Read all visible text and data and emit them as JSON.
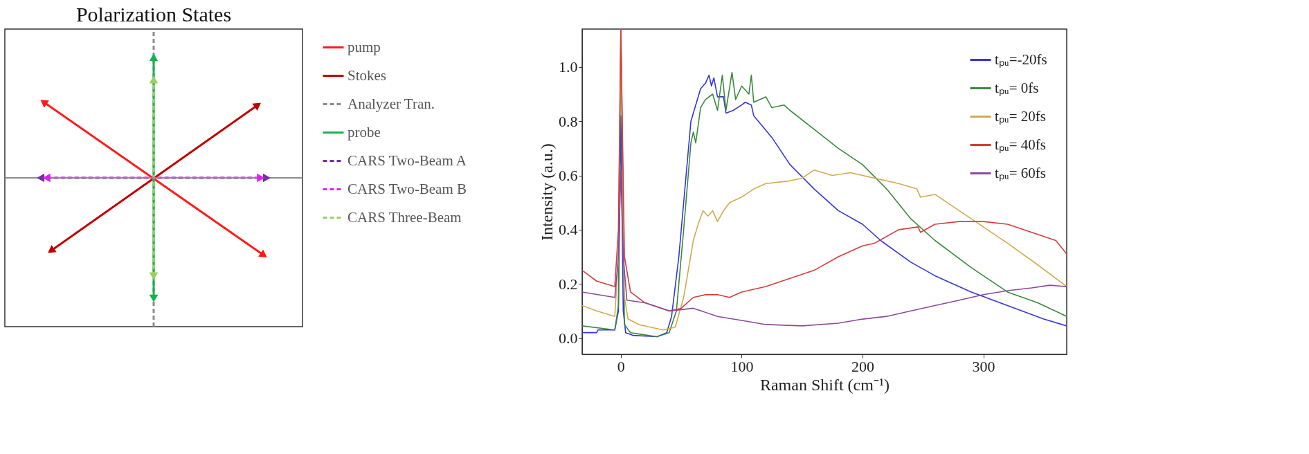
{
  "chart_data": [
    {
      "type": "other",
      "title": "Polarization States",
      "legend": "right",
      "series": [
        {
          "name": "pump",
          "color": "#ff1a1a",
          "line_style": "solid"
        },
        {
          "name": "Stokes",
          "color": "#c00000",
          "line_style": "solid"
        },
        {
          "name": "Analyzer Tran.",
          "color": "#8c8c8c",
          "line_style": "dashed"
        },
        {
          "name": "probe",
          "color": "#19b050",
          "line_style": "solid"
        },
        {
          "name": "CARS Two-Beam A",
          "color": "#7030a0",
          "line_style": "dashed"
        },
        {
          "name": "CARS Two-Beam B",
          "color": "#e020f0",
          "line_style": "dashed"
        },
        {
          "name": "CARS Three-Beam",
          "color": "#99d060",
          "line_style": "dashed"
        }
      ]
    },
    {
      "type": "line",
      "xlabel": "Raman Shift (cm⁻¹)",
      "ylabel": "Intensity (a.u.)",
      "legend": "top right",
      "grid": false,
      "line_style": "solid",
      "xlim": [
        -32,
        369
      ],
      "ylim": [
        -0.06,
        1.14
      ],
      "xticks": [
        0,
        100,
        200,
        300
      ],
      "yticks": [
        {
          "value": 0,
          "label": "0.0"
        },
        {
          "value": 0.2,
          "label": "0.2"
        },
        {
          "value": 0.4,
          "label": "0.4"
        },
        {
          "value": 0.6,
          "label": "0.6"
        },
        {
          "value": 0.8,
          "label": "0.8"
        },
        {
          "value": 1,
          "label": "1.0"
        }
      ],
      "series": [
        {
          "name": "tₚᵤ=-20fs",
          "color": "#3535d8",
          "x": [
            -32,
            -20,
            -19,
            -5,
            -2,
            0,
            2,
            4,
            10,
            30,
            38,
            42,
            48,
            54,
            58,
            62,
            66,
            70,
            73,
            75,
            77,
            80,
            85,
            87,
            93,
            100,
            103,
            108,
            110,
            125,
            140,
            160,
            180,
            200,
            215,
            240,
            260,
            290,
            320,
            350,
            369
          ],
          "values": [
            0.02,
            0.02,
            0.03,
            0.03,
            0.1,
            0.82,
            0.1,
            0.02,
            0.01,
            0.005,
            0.02,
            0.08,
            0.3,
            0.6,
            0.8,
            0.86,
            0.92,
            0.94,
            0.97,
            0.93,
            0.96,
            0.89,
            0.89,
            0.83,
            0.84,
            0.86,
            0.87,
            0.86,
            0.82,
            0.74,
            0.64,
            0.55,
            0.47,
            0.42,
            0.36,
            0.28,
            0.23,
            0.17,
            0.12,
            0.07,
            0.045
          ]
        },
        {
          "name": "tₚᵤ=  0fs",
          "color": "#3a8a3a",
          "x": [
            -32,
            -5,
            -2,
            0,
            3,
            8,
            15,
            30,
            40,
            46,
            52,
            58,
            60,
            62,
            66,
            70,
            76,
            80,
            84,
            87,
            92,
            95,
            100,
            106,
            108,
            110,
            120,
            125,
            135,
            140,
            160,
            180,
            200,
            220,
            240,
            260,
            290,
            320,
            345,
            369
          ],
          "values": [
            0.045,
            0.03,
            0.12,
            1.14,
            0.05,
            0.02,
            0.015,
            0.005,
            0.02,
            0.1,
            0.4,
            0.72,
            0.76,
            0.72,
            0.85,
            0.88,
            0.9,
            0.84,
            0.97,
            0.84,
            0.98,
            0.88,
            0.93,
            0.9,
            0.97,
            0.87,
            0.89,
            0.85,
            0.86,
            0.84,
            0.77,
            0.7,
            0.64,
            0.55,
            0.44,
            0.36,
            0.26,
            0.17,
            0.13,
            0.08
          ]
        },
        {
          "name": "tₚᵤ= 20fs",
          "color": "#d4a850",
          "x": [
            -32,
            -20,
            -5,
            -2,
            0,
            3,
            6,
            15,
            35,
            45,
            52,
            60,
            64,
            68,
            72,
            76,
            80,
            85,
            90,
            100,
            110,
            120,
            140,
            150,
            160,
            175,
            190,
            210,
            230,
            245,
            248,
            260,
            290,
            320,
            345,
            369
          ],
          "values": [
            0.12,
            0.1,
            0.08,
            0.3,
            1.14,
            0.15,
            0.07,
            0.05,
            0.03,
            0.04,
            0.15,
            0.36,
            0.42,
            0.47,
            0.45,
            0.47,
            0.43,
            0.47,
            0.5,
            0.52,
            0.55,
            0.57,
            0.58,
            0.59,
            0.62,
            0.6,
            0.61,
            0.59,
            0.57,
            0.55,
            0.52,
            0.53,
            0.44,
            0.35,
            0.27,
            0.19
          ]
        },
        {
          "name": "tₚᵤ= 40fs",
          "color": "#d43c3c",
          "x": [
            -32,
            -20,
            -5,
            -2,
            0,
            3,
            8,
            20,
            40,
            50,
            60,
            70,
            80,
            90,
            100,
            120,
            140,
            160,
            180,
            200,
            210,
            230,
            246,
            248,
            260,
            280,
            300,
            320,
            340,
            360,
            369
          ],
          "values": [
            0.25,
            0.21,
            0.19,
            0.4,
            1.14,
            0.3,
            0.17,
            0.13,
            0.1,
            0.11,
            0.15,
            0.16,
            0.16,
            0.15,
            0.17,
            0.19,
            0.22,
            0.25,
            0.3,
            0.34,
            0.35,
            0.4,
            0.41,
            0.39,
            0.42,
            0.43,
            0.43,
            0.42,
            0.39,
            0.36,
            0.31
          ]
        },
        {
          "name": "tₚᵤ= 60fs",
          "color": "#8a4a9a",
          "x": [
            -32,
            -5,
            -2,
            0,
            2,
            5,
            20,
            40,
            60,
            80,
            100,
            120,
            150,
            180,
            200,
            220,
            240,
            260,
            280,
            300,
            320,
            340,
            355,
            369
          ],
          "values": [
            0.17,
            0.15,
            0.3,
            0.62,
            0.3,
            0.14,
            0.13,
            0.1,
            0.11,
            0.08,
            0.065,
            0.05,
            0.045,
            0.055,
            0.07,
            0.08,
            0.1,
            0.12,
            0.14,
            0.16,
            0.175,
            0.185,
            0.195,
            0.19
          ]
        }
      ]
    }
  ]
}
